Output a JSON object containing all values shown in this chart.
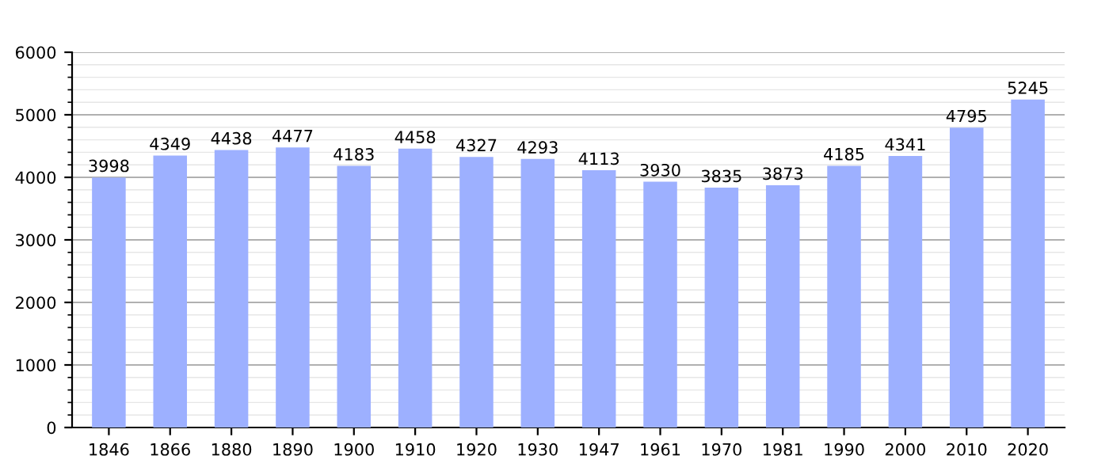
{
  "chart_data": {
    "type": "bar",
    "categories": [
      "1846",
      "1866",
      "1880",
      "1890",
      "1900",
      "1910",
      "1920",
      "1930",
      "1947",
      "1961",
      "1970",
      "1981",
      "1990",
      "2000",
      "2010",
      "2020"
    ],
    "values": [
      3998,
      4349,
      4438,
      4477,
      4183,
      4458,
      4327,
      4293,
      4113,
      3930,
      3835,
      3873,
      4185,
      4341,
      4795,
      5245
    ],
    "color": "#9db0ff",
    "ylim": [
      0,
      6000
    ],
    "yticks": [
      0,
      1000,
      2000,
      3000,
      4000,
      5000,
      6000
    ],
    "grid": "y",
    "data_labels": true
  }
}
